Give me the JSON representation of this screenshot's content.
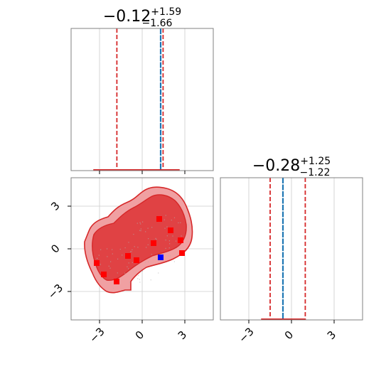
{
  "chart_data": {
    "type": "scatter",
    "grid": true,
    "parameters": [
      {
        "summary": {
          "median": "−0.12",
          "plus": "+1.59",
          "minus": "−1.66"
        },
        "median": -0.12,
        "interval": [
          -1.78,
          1.47
        ],
        "truth": 1.3,
        "range": [
          -5,
          5
        ],
        "histogram": {
          "x": [
            -2.8,
            -1.6,
            -0.4,
            0.8,
            2.0
          ],
          "counts": [
            1,
            1,
            1,
            1,
            1
          ]
        }
      },
      {
        "summary": {
          "median": "−0.28",
          "plus": "+1.25",
          "minus": "−1.22"
        },
        "median": -0.28,
        "interval": [
          -1.5,
          0.97
        ],
        "truth": -0.6,
        "range": [
          -5,
          5
        ],
        "histogram": {
          "x": [
            -1.6,
            -0.6,
            0.4
          ],
          "counts": [
            1,
            1,
            1
          ]
        }
      }
    ],
    "ticks": {
      "values": [
        -3,
        0,
        3
      ],
      "labels": [
        "−3",
        "0",
        "3"
      ]
    },
    "samples": [
      {
        "x": -3.2,
        "y": -1.0
      },
      {
        "x": -2.7,
        "y": -1.8
      },
      {
        "x": -1.0,
        "y": -0.5
      },
      {
        "x": -0.4,
        "y": -0.8
      },
      {
        "x": -1.8,
        "y": -2.3
      },
      {
        "x": 0.8,
        "y": 0.4
      },
      {
        "x": 1.2,
        "y": 2.1
      },
      {
        "x": 2.0,
        "y": 1.3
      },
      {
        "x": 2.7,
        "y": 0.6
      },
      {
        "x": 2.8,
        "y": -0.3
      }
    ],
    "truth_point": {
      "x": 1.3,
      "y": -0.6
    },
    "colors": {
      "contour_line": "#d62728",
      "contour_fill_outer": "#f0a0a2",
      "contour_fill_inner": "#e04244",
      "sample_marker": "#ff0000",
      "truth_marker": "#0000ff",
      "median_line": "#1f77b4",
      "interval_line": "#d62728",
      "axes_edge": "#808080",
      "grid": "#cccccc"
    }
  }
}
